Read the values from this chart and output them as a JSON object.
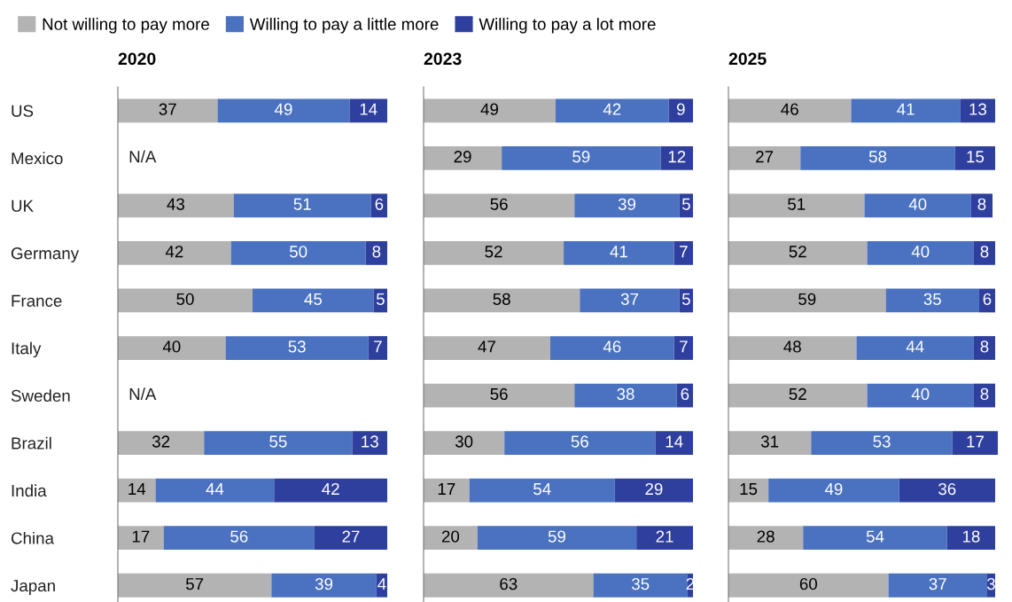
{
  "chart_data": [
    {
      "type": "bar",
      "orientation": "horizontal",
      "stacked": true,
      "title": "2020",
      "legend": "top",
      "tick_labels": "y",
      "data_labels": true,
      "xlim": [
        0,
        100
      ],
      "categories": [
        "US",
        "Mexico",
        "UK",
        "Germany",
        "France",
        "Italy",
        "Sweden",
        "Brazil",
        "India",
        "China",
        "Japan"
      ],
      "series": [
        {
          "name": "Not willing to pay more",
          "color": "#b3b3b3",
          "values": [
            37,
            null,
            43,
            42,
            50,
            40,
            null,
            32,
            14,
            17,
            57
          ]
        },
        {
          "name": "Willing to pay a little more",
          "color": "#4a72c0",
          "values": [
            49,
            null,
            51,
            50,
            45,
            53,
            null,
            55,
            44,
            56,
            39
          ]
        },
        {
          "name": "Willing to pay a lot more",
          "color": "#2f3f9e",
          "values": [
            14,
            null,
            6,
            8,
            5,
            7,
            null,
            13,
            42,
            27,
            4
          ]
        }
      ],
      "annotations": [
        "N/A",
        "N/A"
      ]
    },
    {
      "type": "bar",
      "orientation": "horizontal",
      "stacked": true,
      "title": "2023",
      "tick_labels": false,
      "data_labels": true,
      "xlim": [
        0,
        100
      ],
      "categories": [
        null,
        null,
        null,
        null,
        null,
        null,
        null,
        null,
        null,
        null,
        null
      ],
      "series": [
        {
          "color": "#b3b3b3",
          "values": [
            49,
            29,
            56,
            52,
            58,
            47,
            56,
            30,
            17,
            20,
            63
          ]
        },
        {
          "color": "#4a72c0",
          "values": [
            42,
            59,
            39,
            41,
            37,
            46,
            38,
            56,
            54,
            59,
            35
          ]
        },
        {
          "color": "#2f3f9e",
          "values": [
            9,
            12,
            5,
            7,
            5,
            7,
            6,
            14,
            29,
            21,
            2
          ]
        }
      ]
    },
    {
      "type": "bar",
      "orientation": "horizontal",
      "stacked": true,
      "title": "2025",
      "tick_labels": false,
      "data_labels": true,
      "xlim": [
        0,
        101
      ],
      "categories": [
        null,
        null,
        null,
        null,
        null,
        null,
        null,
        null,
        null,
        null,
        null
      ],
      "series": [
        {
          "color": "#b3b3b3",
          "values": [
            46,
            27,
            51,
            52,
            59,
            48,
            52,
            31,
            15,
            28,
            60
          ]
        },
        {
          "color": "#4a72c0",
          "values": [
            41,
            58,
            40,
            40,
            35,
            44,
            40,
            53,
            49,
            54,
            37
          ]
        },
        {
          "color": "#2f3f9e",
          "values": [
            13,
            15,
            8,
            8,
            6,
            8,
            8,
            17,
            36,
            18,
            3
          ]
        }
      ]
    }
  ]
}
